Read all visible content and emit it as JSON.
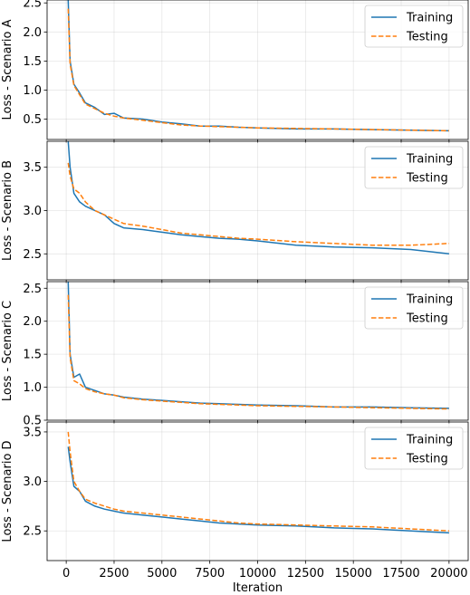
{
  "chart_data": {
    "type": "line",
    "shared_x": true,
    "xlabel": "Iteration",
    "xlim": [
      -1000,
      21000
    ],
    "xticks": [
      0,
      2500,
      5000,
      7500,
      10000,
      12500,
      15000,
      17500,
      20000
    ],
    "xtick_labels": [
      "0",
      "2500",
      "5000",
      "7500",
      "10000",
      "12500",
      "15000",
      "17500",
      "20000"
    ],
    "grid": true,
    "legend_placement": "upper-right",
    "colors": {
      "Training": "#1f77b4",
      "Testing": "#ff7f0e"
    },
    "panels": [
      {
        "ylabel": "Loss - Scenario A",
        "ylim": [
          0.15,
          2.55
        ],
        "yticks": [
          0.5,
          1.0,
          1.5,
          2.0,
          2.5
        ],
        "ytick_labels": [
          "0.5",
          "1.0",
          "1.5",
          "2.0",
          "2.5"
        ],
        "series": [
          {
            "name": "Training",
            "style": "solid",
            "x": [
              100,
              200,
              400,
              700,
              1000,
              1500,
              2000,
              2500,
              3000,
              4000,
              5000,
              6000,
              7000,
              8000,
              9000,
              10000,
              12000,
              14000,
              16000,
              18000,
              20000
            ],
            "y": [
              2.55,
              1.5,
              1.1,
              0.95,
              0.78,
              0.7,
              0.58,
              0.6,
              0.52,
              0.5,
              0.45,
              0.42,
              0.38,
              0.38,
              0.36,
              0.35,
              0.33,
              0.33,
              0.32,
              0.31,
              0.3
            ]
          },
          {
            "name": "Testing",
            "style": "dashed",
            "x": [
              100,
              200,
              400,
              700,
              1000,
              1500,
              2000,
              2500,
              3000,
              4000,
              5000,
              6000,
              7000,
              8000,
              9000,
              10000,
              12000,
              14000,
              16000,
              18000,
              20000
            ],
            "y": [
              2.4,
              1.45,
              1.08,
              0.92,
              0.76,
              0.68,
              0.6,
              0.55,
              0.52,
              0.48,
              0.44,
              0.4,
              0.38,
              0.37,
              0.36,
              0.35,
              0.34,
              0.33,
              0.32,
              0.31,
              0.3
            ]
          }
        ]
      },
      {
        "ylabel": "Loss - Scenario B",
        "ylim": [
          2.2,
          3.8
        ],
        "yticks": [
          2.5,
          3.0,
          3.5
        ],
        "ytick_labels": [
          "2.5",
          "3.0",
          "3.5"
        ],
        "series": [
          {
            "name": "Training",
            "style": "solid",
            "x": [
              100,
              200,
              400,
              700,
              1000,
              1500,
              2000,
              2500,
              3000,
              4000,
              5000,
              6000,
              7000,
              8000,
              9000,
              10000,
              12000,
              14000,
              16000,
              18000,
              20000
            ],
            "y": [
              3.8,
              3.5,
              3.2,
              3.1,
              3.05,
              3.0,
              2.95,
              2.85,
              2.8,
              2.78,
              2.75,
              2.72,
              2.7,
              2.68,
              2.67,
              2.65,
              2.6,
              2.58,
              2.57,
              2.55,
              2.5
            ]
          },
          {
            "name": "Testing",
            "style": "dashed",
            "x": [
              100,
              200,
              400,
              700,
              1000,
              1500,
              2000,
              2500,
              3000,
              4000,
              5000,
              6000,
              7000,
              8000,
              9000,
              10000,
              12000,
              14000,
              16000,
              18000,
              20000
            ],
            "y": [
              3.55,
              3.4,
              3.25,
              3.2,
              3.1,
              3.0,
              2.95,
              2.9,
              2.85,
              2.82,
              2.78,
              2.74,
              2.72,
              2.7,
              2.68,
              2.67,
              2.64,
              2.62,
              2.6,
              2.6,
              2.62
            ]
          }
        ]
      },
      {
        "ylabel": "Loss - Scenario C",
        "ylim": [
          0.5,
          2.6
        ],
        "yticks": [
          0.5,
          1.0,
          1.5,
          2.0,
          2.5
        ],
        "ytick_labels": [
          "0.5",
          "1.0",
          "1.5",
          "2.0",
          "2.5"
        ],
        "series": [
          {
            "name": "Training",
            "style": "solid",
            "x": [
              100,
              200,
              400,
              700,
              1000,
              1500,
              2000,
              2500,
              3000,
              4000,
              5000,
              6000,
              7000,
              8000,
              9000,
              10000,
              12000,
              14000,
              16000,
              18000,
              20000
            ],
            "y": [
              2.6,
              1.5,
              1.15,
              1.2,
              1.0,
              0.95,
              0.9,
              0.88,
              0.85,
              0.82,
              0.8,
              0.78,
              0.76,
              0.75,
              0.74,
              0.73,
              0.72,
              0.7,
              0.7,
              0.69,
              0.68
            ]
          },
          {
            "name": "Testing",
            "style": "dashed",
            "x": [
              100,
              200,
              400,
              700,
              1000,
              1500,
              2000,
              2500,
              3000,
              4000,
              5000,
              6000,
              7000,
              8000,
              9000,
              10000,
              12000,
              14000,
              16000,
              18000,
              20000
            ],
            "y": [
              2.4,
              1.45,
              1.1,
              1.05,
              0.98,
              0.93,
              0.9,
              0.88,
              0.84,
              0.81,
              0.79,
              0.77,
              0.75,
              0.74,
              0.73,
              0.72,
              0.71,
              0.7,
              0.69,
              0.68,
              0.67
            ]
          }
        ]
      },
      {
        "ylabel": "Loss - Scenario D",
        "ylim": [
          2.2,
          3.6
        ],
        "yticks": [
          2.5,
          3.0,
          3.5
        ],
        "ytick_labels": [
          "2.5",
          "3.0",
          "3.5"
        ],
        "series": [
          {
            "name": "Training",
            "style": "solid",
            "x": [
              100,
              200,
              400,
              700,
              1000,
              1500,
              2000,
              2500,
              3000,
              4000,
              5000,
              6000,
              7000,
              8000,
              9000,
              10000,
              12000,
              14000,
              16000,
              18000,
              20000
            ],
            "y": [
              3.35,
              3.2,
              2.95,
              2.9,
              2.8,
              2.75,
              2.72,
              2.7,
              2.68,
              2.66,
              2.64,
              2.62,
              2.6,
              2.58,
              2.57,
              2.56,
              2.55,
              2.53,
              2.52,
              2.5,
              2.48
            ]
          },
          {
            "name": "Testing",
            "style": "dashed",
            "x": [
              100,
              200,
              400,
              700,
              1000,
              1500,
              2000,
              2500,
              3000,
              4000,
              5000,
              6000,
              7000,
              8000,
              9000,
              10000,
              12000,
              14000,
              16000,
              18000,
              20000
            ],
            "y": [
              3.5,
              3.3,
              3.0,
              2.9,
              2.82,
              2.78,
              2.75,
              2.72,
              2.7,
              2.68,
              2.66,
              2.64,
              2.62,
              2.6,
              2.58,
              2.57,
              2.56,
              2.55,
              2.54,
              2.52,
              2.5
            ]
          }
        ]
      }
    ]
  }
}
